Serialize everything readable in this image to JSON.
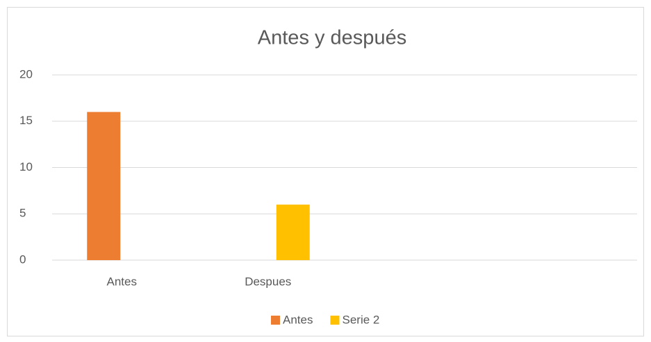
{
  "chart_data": {
    "type": "bar",
    "title": "Antes y después",
    "categories": [
      "Antes",
      "Despues",
      null,
      null
    ],
    "series": [
      {
        "name": "Antes",
        "color": "#ed7d31",
        "values": [
          16,
          null,
          null,
          null
        ]
      },
      {
        "name": "Serie 2",
        "color": "#ffc000",
        "values": [
          null,
          6,
          null,
          null
        ]
      }
    ],
    "ylim": [
      0,
      20
    ],
    "yticks": [
      0,
      5,
      10,
      15,
      20
    ],
    "grid": true,
    "legend": "bottom"
  }
}
